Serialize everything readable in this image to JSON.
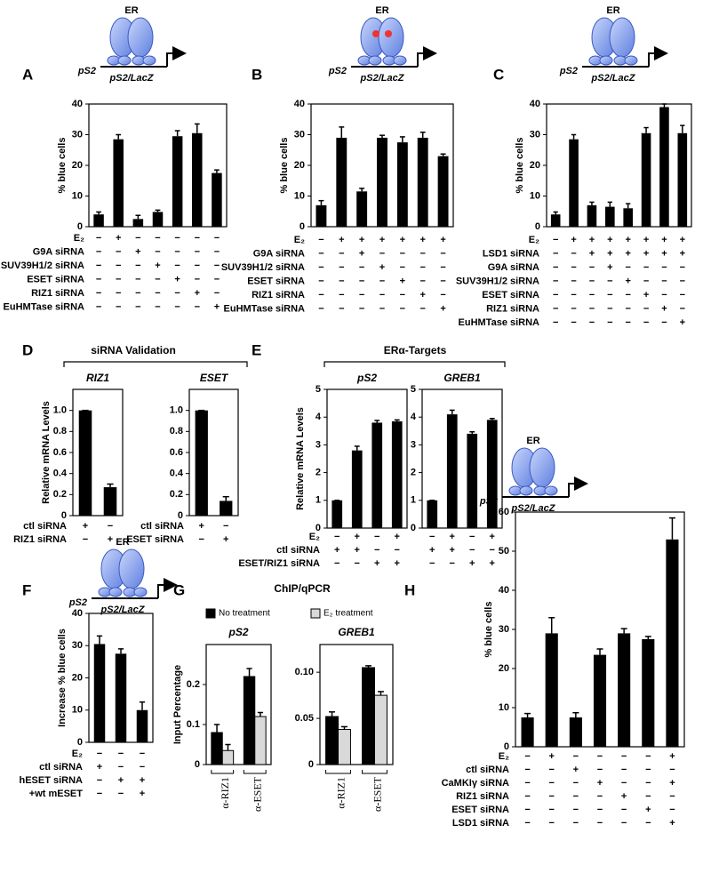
{
  "chart_data": [
    {
      "type": "bar",
      "panel": "A",
      "receptor": "ER",
      "promoter": "pS2",
      "construct": "pS2/LacZ",
      "ylabel": "% blue cells",
      "ylim": [
        0,
        40
      ],
      "yticks": [
        0,
        10,
        20,
        30,
        40
      ],
      "color": "#000000",
      "values": [
        4,
        28.5,
        2.5,
        4.8,
        29.5,
        30.5,
        17.5
      ],
      "errors": [
        0.8,
        1.5,
        1.2,
        0.6,
        1.8,
        3,
        1
      ],
      "conditions": [
        {
          "label": "E₂",
          "signs": [
            "−",
            "+",
            "−",
            "−",
            "−",
            "−",
            "−"
          ]
        },
        {
          "label": "G9A siRNA",
          "signs": [
            "−",
            "−",
            "+",
            "−",
            "−",
            "−",
            "−"
          ]
        },
        {
          "label": "SUV39H1/2 siRNA",
          "signs": [
            "−",
            "−",
            "−",
            "+",
            "−",
            "−",
            "−"
          ]
        },
        {
          "label": "ESET siRNA",
          "signs": [
            "−",
            "−",
            "−",
            "−",
            "+",
            "−",
            "−"
          ]
        },
        {
          "label": "RIZ1 siRNA",
          "signs": [
            "−",
            "−",
            "−",
            "−",
            "−",
            "+",
            "−"
          ]
        },
        {
          "label": "EuHMTase siRNA",
          "signs": [
            "−",
            "−",
            "−",
            "−",
            "−",
            "−",
            "+"
          ]
        }
      ]
    },
    {
      "type": "bar",
      "panel": "B",
      "receptor": "ER",
      "promoter": "pS2",
      "construct": "pS2/LacZ",
      "ylabel": "% blue cells",
      "ylim": [
        0,
        40
      ],
      "yticks": [
        0,
        10,
        20,
        30,
        40
      ],
      "color": "#000000",
      "values": [
        7,
        29,
        11.5,
        29,
        27.5,
        29,
        23
      ],
      "errors": [
        1.5,
        3.5,
        1,
        0.8,
        1.8,
        1.8,
        0.7
      ],
      "conditions": [
        {
          "label": "E₂",
          "signs": [
            "−",
            "+",
            "+",
            "+",
            "+",
            "+",
            "+"
          ]
        },
        {
          "label": "G9A siRNA",
          "signs": [
            "−",
            "−",
            "+",
            "−",
            "−",
            "−",
            "−"
          ]
        },
        {
          "label": "SUV39H1/2 siRNA",
          "signs": [
            "−",
            "−",
            "−",
            "+",
            "−",
            "−",
            "−"
          ]
        },
        {
          "label": "ESET siRNA",
          "signs": [
            "−",
            "−",
            "−",
            "−",
            "+",
            "−",
            "−"
          ]
        },
        {
          "label": "RIZ1 siRNA",
          "signs": [
            "−",
            "−",
            "−",
            "−",
            "−",
            "+",
            "−"
          ]
        },
        {
          "label": "EuHMTase siRNA",
          "signs": [
            "−",
            "−",
            "−",
            "−",
            "−",
            "−",
            "+"
          ]
        }
      ]
    },
    {
      "type": "bar",
      "panel": "C",
      "receptor": "ER",
      "promoter": "pS2",
      "construct": "pS2/LacZ",
      "ylabel": "% blue cells",
      "ylim": [
        0,
        40
      ],
      "yticks": [
        0,
        10,
        20,
        30,
        40
      ],
      "color": "#000000",
      "values": [
        4,
        28.5,
        7,
        6.5,
        6,
        30.5,
        39,
        30.5
      ],
      "errors": [
        0.8,
        1.5,
        1,
        1.5,
        1.5,
        1.8,
        1,
        2.5
      ],
      "conditions": [
        {
          "label": "E₂",
          "signs": [
            "−",
            "+",
            "+",
            "+",
            "+",
            "+",
            "+",
            "+"
          ]
        },
        {
          "label": "LSD1 siRNA",
          "signs": [
            "−",
            "−",
            "+",
            "+",
            "+",
            "+",
            "+",
            "+"
          ]
        },
        {
          "label": "G9A siRNA",
          "signs": [
            "−",
            "−",
            "−",
            "+",
            "−",
            "−",
            "−",
            "−"
          ]
        },
        {
          "label": "SUV39H1/2 siRNA",
          "signs": [
            "−",
            "−",
            "−",
            "−",
            "+",
            "−",
            "−",
            "−"
          ]
        },
        {
          "label": "ESET siRNA",
          "signs": [
            "−",
            "−",
            "−",
            "−",
            "−",
            "+",
            "−",
            "−"
          ]
        },
        {
          "label": "RIZ1 siRNA",
          "signs": [
            "−",
            "−",
            "−",
            "−",
            "−",
            "−",
            "+",
            "−"
          ]
        },
        {
          "label": "EuHMTase siRNA",
          "signs": [
            "−",
            "−",
            "−",
            "−",
            "−",
            "−",
            "−",
            "+"
          ]
        }
      ]
    },
    {
      "type": "bar",
      "panel": "D",
      "header": "siRNA Validation",
      "title": "RIZ1",
      "ylabel": "Relative mRNA Levels",
      "ylim": [
        0,
        1.2
      ],
      "yticks": [
        0,
        0.2,
        0.4,
        0.6,
        0.8,
        {
          "value": 1,
          "label": "1.0"
        }
      ],
      "color": "#000000",
      "values": [
        1,
        0.27
      ],
      "errors": [
        0,
        0.03
      ],
      "conditions": [
        {
          "label": "ctl siRNA",
          "signs": [
            "+",
            "−"
          ]
        },
        {
          "label": "RIZ1 siRNA",
          "signs": [
            "−",
            "+"
          ]
        }
      ]
    },
    {
      "type": "bar",
      "title": "ESET",
      "ylim": [
        0,
        1.2
      ],
      "yticks": [
        0,
        0.2,
        0.4,
        0.6,
        0.8,
        {
          "value": 1,
          "label": "1.0"
        }
      ],
      "color": "#000000",
      "values": [
        1,
        0.14
      ],
      "errors": [
        0,
        0.04
      ],
      "conditions": [
        {
          "label": "ctl siRNA",
          "signs": [
            "+",
            "−"
          ]
        },
        {
          "label": "ESET siRNA",
          "signs": [
            "−",
            "+"
          ]
        }
      ]
    },
    {
      "type": "bar",
      "panel": "E",
      "header": "ERα-Targets",
      "title": "pS2",
      "ylabel": "Relative mRNA Levels",
      "ylim": [
        0,
        5
      ],
      "yticks": [
        0,
        1,
        2,
        3,
        4,
        5
      ],
      "color": "#000000",
      "values": [
        1,
        2.8,
        3.8,
        3.85
      ],
      "errors": [
        0,
        0.15,
        0.08,
        0.05
      ],
      "conditions": [
        {
          "label": "E₂",
          "signs": [
            "−",
            "+",
            "−",
            "+"
          ]
        },
        {
          "label": "ctl siRNA",
          "signs": [
            "+",
            "+",
            "−",
            "−"
          ]
        },
        {
          "label": "ESET/RIZ1 siRNA",
          "signs": [
            "−",
            "−",
            "+",
            "+"
          ]
        }
      ]
    },
    {
      "type": "bar",
      "title": "GREB1",
      "ylim": [
        0,
        5
      ],
      "yticks": [
        0,
        1,
        2,
        3,
        4,
        5
      ],
      "color": "#000000",
      "values": [
        1,
        4.1,
        3.4,
        3.9
      ],
      "errors": [
        0,
        0.15,
        0.07,
        0.05
      ],
      "conditions": [
        {
          "signs": [
            "−",
            "+",
            "−",
            "+"
          ]
        },
        {
          "signs": [
            "+",
            "+",
            "−",
            "−"
          ]
        },
        {
          "signs": [
            "−",
            "−",
            "+",
            "+"
          ]
        }
      ]
    },
    {
      "type": "bar",
      "panel": "F",
      "receptor": "ER",
      "promoter": "pS2",
      "construct": "pS2/LacZ",
      "ylabel": "Increase % blue cells",
      "ylim": [
        0,
        40
      ],
      "yticks": [
        0,
        10,
        20,
        30,
        40
      ],
      "color": "#000000",
      "values": [
        30.5,
        27.5,
        10
      ],
      "errors": [
        2.5,
        1.5,
        2.5
      ],
      "conditions": [
        {
          "label": "E₂",
          "signs": [
            "−",
            "−",
            "−"
          ]
        },
        {
          "label": "ctl siRNA",
          "signs": [
            "+",
            "−",
            "−"
          ]
        },
        {
          "label": "hESET siRNA",
          "signs": [
            "−",
            "+",
            "+"
          ]
        },
        {
          "label": "+wt mESET",
          "signs": [
            "−",
            "−",
            "+"
          ]
        }
      ]
    },
    {
      "type": "grouped_bar",
      "panel": "G",
      "header": "ChIP/qPCR",
      "title": "pS2",
      "ylabel": "Input Percentage",
      "ylim": [
        0,
        0.3
      ],
      "yticks": [
        0,
        0.1,
        0.2
      ],
      "categories": [
        "α-RIZ1",
        "α-ESET"
      ],
      "series": [
        {
          "name": "No treatment",
          "color": "#000000",
          "values": [
            0.08,
            0.22
          ],
          "errors": [
            0.02,
            0.02
          ]
        },
        {
          "name": "E₂ treatment",
          "color": "#d9d9d9",
          "values": [
            0.035,
            0.12
          ],
          "errors": [
            0.015,
            0.01
          ]
        }
      ]
    },
    {
      "type": "grouped_bar",
      "title": "GREB1",
      "ylim": [
        0,
        0.13
      ],
      "yticks": [
        0,
        0.05,
        {
          "value": 0.1,
          "label": "0.10"
        }
      ],
      "categories": [
        "α-RIZ1",
        "α-ESET"
      ],
      "series": [
        {
          "color": "#000000",
          "values": [
            0.052,
            0.105
          ],
          "errors": [
            0.005,
            0.002
          ]
        },
        {
          "color": "#d9d9d9",
          "values": [
            0.038,
            0.075
          ],
          "errors": [
            0.003,
            0.004
          ]
        }
      ]
    },
    {
      "type": "bar",
      "panel": "H",
      "receptor": "ER",
      "promoter": "pS2",
      "construct": "pS2/LacZ",
      "ylabel": "% blue cells",
      "ylim": [
        0,
        60
      ],
      "yticks": [
        0,
        10,
        20,
        30,
        40,
        50,
        60
      ],
      "color": "#000000",
      "values": [
        7.5,
        29,
        7.5,
        23.5,
        29,
        27.5,
        53
      ],
      "errors": [
        1,
        4,
        1.2,
        1.5,
        1.2,
        0.7,
        5.5
      ],
      "conditions": [
        {
          "label": "E₂",
          "signs": [
            "−",
            "+",
            "−",
            "−",
            "−",
            "−",
            "+"
          ]
        },
        {
          "label": "ctl siRNA",
          "signs": [
            "−",
            "−",
            "+",
            "−",
            "−",
            "−",
            "−"
          ]
        },
        {
          "label": "CaMKIγ siRNA",
          "signs": [
            "−",
            "−",
            "−",
            "+",
            "−",
            "−",
            "+"
          ]
        },
        {
          "label": "RIZ1 siRNA",
          "signs": [
            "−",
            "−",
            "−",
            "−",
            "+",
            "−",
            "−"
          ]
        },
        {
          "label": "ESET siRNA",
          "signs": [
            "−",
            "−",
            "−",
            "−",
            "−",
            "+",
            "−"
          ]
        },
        {
          "label": "LSD1 siRNA",
          "signs": [
            "−",
            "−",
            "−",
            "−",
            "−",
            "−",
            "+"
          ]
        }
      ]
    }
  ]
}
